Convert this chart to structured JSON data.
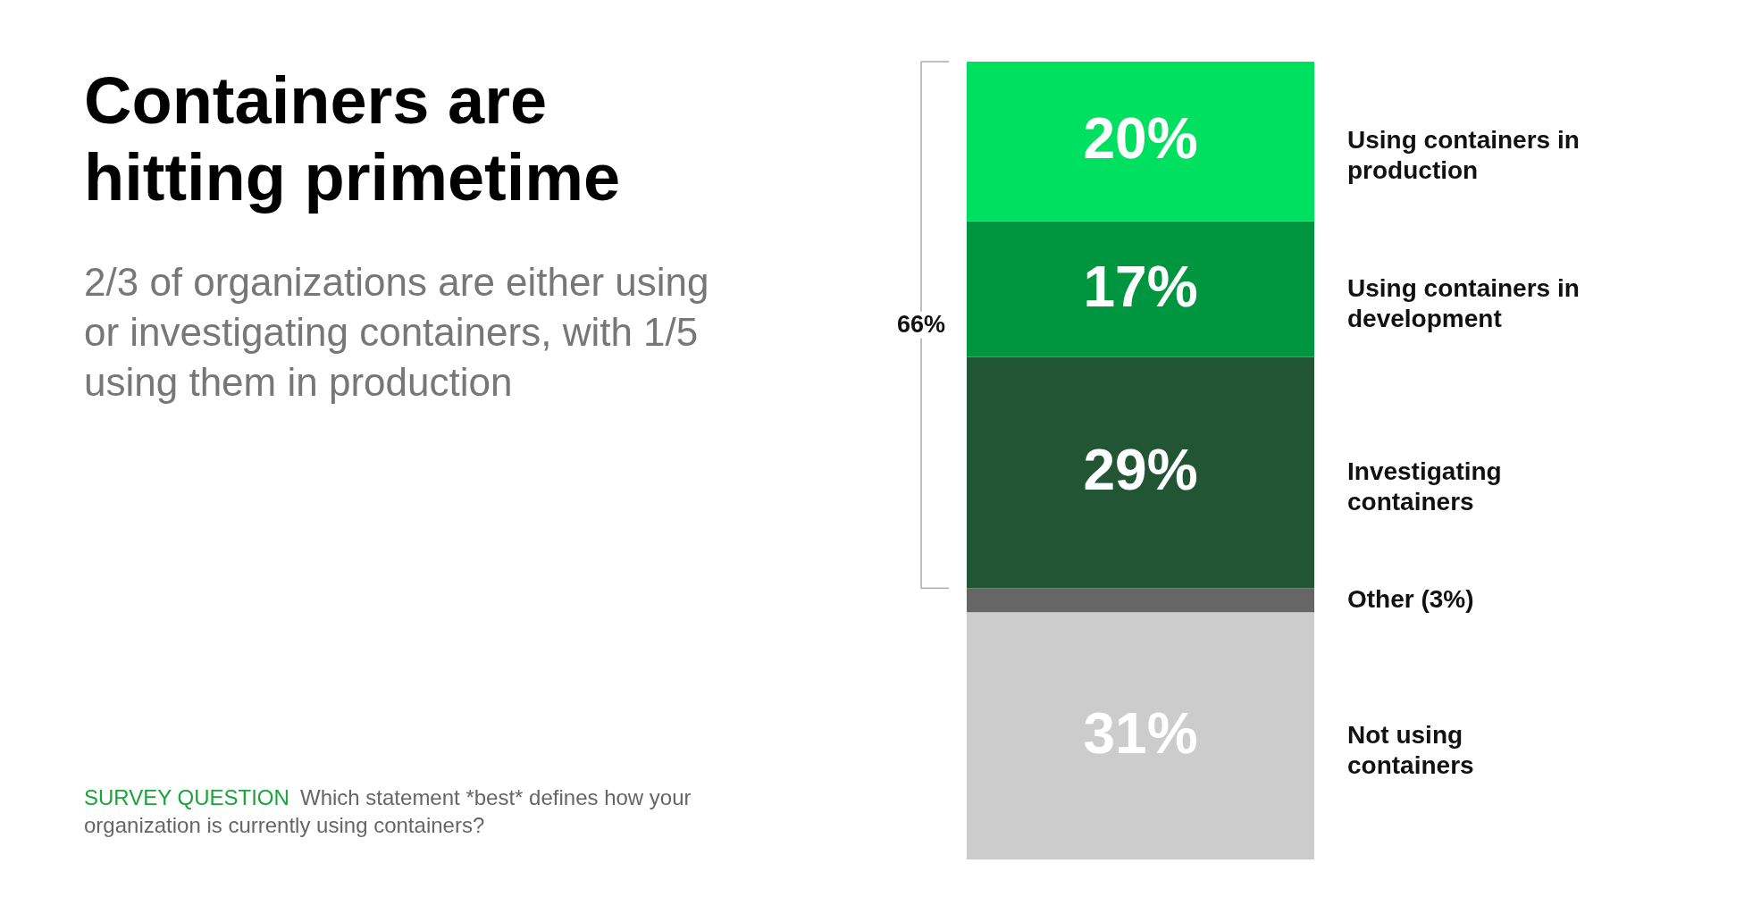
{
  "chart_data": {
    "type": "bar",
    "stacked": true,
    "title": "Containers are hitting primetime",
    "subtitle": "2/3 of organizations are either using or investigating containers, with 1/5 using them in production",
    "annotations": [
      "SURVEY QUESTION",
      "Which statement *best* defines how your organization is currently using containers?",
      "66%"
    ],
    "categories": [
      null
    ],
    "series": [
      {
        "name": "Not using containers",
        "color": "#cccccc",
        "values": [
          31
        ],
        "value_labels": [
          "31%"
        ]
      },
      {
        "name": "Other (3%)",
        "color": "#666666",
        "values": [
          3
        ],
        "value_labels": [
          null
        ]
      },
      {
        "name": "Investigating containers",
        "color": "#225533",
        "values": [
          29
        ],
        "value_labels": [
          "29%"
        ]
      },
      {
        "name": "Using containers in development",
        "color": "#009640",
        "values": [
          17
        ],
        "value_labels": [
          "17%"
        ]
      },
      {
        "name": "Using containers in production",
        "color": "#00e060",
        "values": [
          20
        ],
        "value_labels": [
          "20%"
        ]
      }
    ],
    "legend": false
  }
}
